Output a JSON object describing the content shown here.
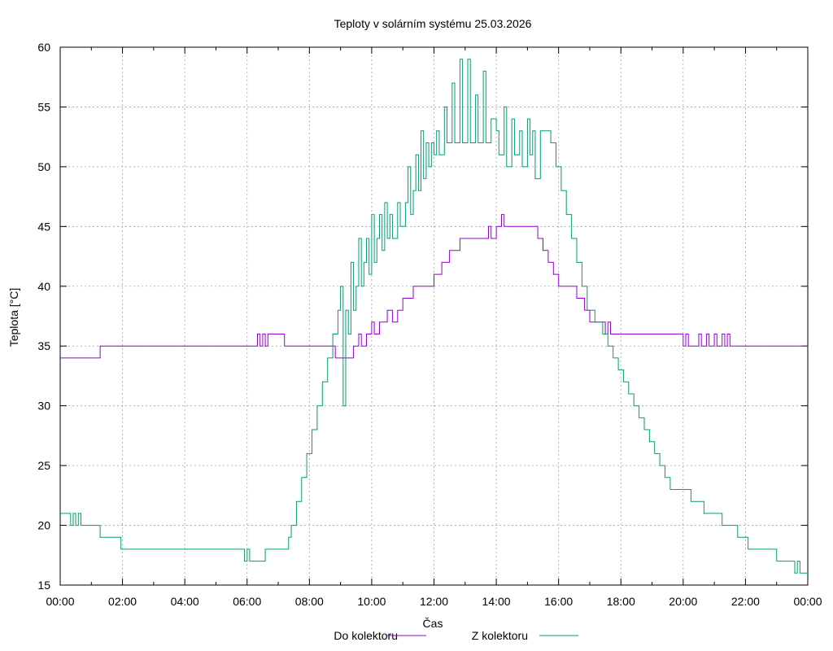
{
  "chart_data": {
    "type": "line",
    "title": "Teploty v solárním systému 25.03.2026",
    "xlabel": "Čas",
    "ylabel": "Teplota [°C]",
    "xlim": [
      "00:00",
      "24:00"
    ],
    "ylim": [
      15,
      60
    ],
    "x_ticks": [
      "00:00",
      "02:00",
      "04:00",
      "06:00",
      "08:00",
      "10:00",
      "12:00",
      "14:00",
      "16:00",
      "18:00",
      "20:00",
      "22:00",
      "00:00"
    ],
    "y_ticks": [
      15,
      20,
      25,
      30,
      35,
      40,
      45,
      50,
      55,
      60
    ],
    "grid": true,
    "legend_position": "bottom",
    "series": [
      {
        "name": "Do kolektoru",
        "color": "#9400d3",
        "points": [
          [
            "00:00",
            34
          ],
          [
            "01:15",
            34
          ],
          [
            "01:17",
            35
          ],
          [
            "06:15",
            35
          ],
          [
            "06:20",
            36
          ],
          [
            "06:25",
            35
          ],
          [
            "06:30",
            36
          ],
          [
            "06:35",
            35
          ],
          [
            "06:40",
            36
          ],
          [
            "07:10",
            36
          ],
          [
            "07:12",
            35
          ],
          [
            "08:45",
            35
          ],
          [
            "08:50",
            34
          ],
          [
            "09:20",
            34
          ],
          [
            "09:25",
            35
          ],
          [
            "09:35",
            36
          ],
          [
            "09:40",
            35
          ],
          [
            "09:50",
            36
          ],
          [
            "10:00",
            37
          ],
          [
            "10:05",
            36
          ],
          [
            "10:15",
            37
          ],
          [
            "10:30",
            38
          ],
          [
            "10:40",
            37
          ],
          [
            "10:50",
            38
          ],
          [
            "11:00",
            39
          ],
          [
            "11:20",
            40
          ],
          [
            "11:40",
            40
          ],
          [
            "12:00",
            41
          ],
          [
            "12:15",
            42
          ],
          [
            "12:30",
            43
          ],
          [
            "12:50",
            44
          ],
          [
            "13:40",
            44
          ],
          [
            "13:45",
            45
          ],
          [
            "13:50",
            44
          ],
          [
            "14:00",
            45
          ],
          [
            "14:10",
            46
          ],
          [
            "14:15",
            45
          ],
          [
            "15:10",
            45
          ],
          [
            "15:20",
            44
          ],
          [
            "15:30",
            43
          ],
          [
            "15:40",
            42
          ],
          [
            "15:50",
            41
          ],
          [
            "16:00",
            40
          ],
          [
            "16:30",
            40
          ],
          [
            "16:35",
            39
          ],
          [
            "16:50",
            38
          ],
          [
            "17:00",
            37
          ],
          [
            "17:25",
            37
          ],
          [
            "17:30",
            36
          ],
          [
            "17:35",
            37
          ],
          [
            "17:40",
            36
          ],
          [
            "19:59",
            36
          ],
          [
            "20:00",
            35
          ],
          [
            "20:05",
            36
          ],
          [
            "20:10",
            35
          ],
          [
            "20:30",
            36
          ],
          [
            "20:35",
            35
          ],
          [
            "20:45",
            36
          ],
          [
            "20:50",
            35
          ],
          [
            "21:00",
            36
          ],
          [
            "21:05",
            35
          ],
          [
            "21:15",
            36
          ],
          [
            "21:20",
            35
          ],
          [
            "21:25",
            36
          ],
          [
            "21:30",
            35
          ],
          [
            "24:00",
            35
          ]
        ]
      },
      {
        "name": "Z kolektoru",
        "color": "#009e73",
        "points": [
          [
            "00:00",
            21
          ],
          [
            "00:15",
            21
          ],
          [
            "00:20",
            20
          ],
          [
            "00:25",
            21
          ],
          [
            "00:30",
            20
          ],
          [
            "00:35",
            21
          ],
          [
            "00:40",
            20
          ],
          [
            "01:15",
            20
          ],
          [
            "01:17",
            19
          ],
          [
            "01:55",
            19
          ],
          [
            "01:57",
            18
          ],
          [
            "05:50",
            18
          ],
          [
            "05:55",
            17
          ],
          [
            "06:00",
            18
          ],
          [
            "06:05",
            17
          ],
          [
            "06:30",
            17
          ],
          [
            "06:35",
            18
          ],
          [
            "07:15",
            18
          ],
          [
            "07:20",
            19
          ],
          [
            "07:25",
            20
          ],
          [
            "07:35",
            22
          ],
          [
            "07:45",
            24
          ],
          [
            "07:55",
            26
          ],
          [
            "08:05",
            28
          ],
          [
            "08:15",
            30
          ],
          [
            "08:25",
            32
          ],
          [
            "08:35",
            34
          ],
          [
            "08:45",
            36
          ],
          [
            "08:55",
            38
          ],
          [
            "09:00",
            40
          ],
          [
            "09:05",
            30
          ],
          [
            "09:10",
            38
          ],
          [
            "09:15",
            36
          ],
          [
            "09:20",
            42
          ],
          [
            "09:25",
            38
          ],
          [
            "09:30",
            40
          ],
          [
            "09:35",
            44
          ],
          [
            "09:40",
            40
          ],
          [
            "09:45",
            42
          ],
          [
            "09:50",
            44
          ],
          [
            "09:55",
            41
          ],
          [
            "10:00",
            46
          ],
          [
            "10:05",
            42
          ],
          [
            "10:10",
            44
          ],
          [
            "10:15",
            46
          ],
          [
            "10:20",
            43
          ],
          [
            "10:25",
            47
          ],
          [
            "10:30",
            44
          ],
          [
            "10:35",
            46
          ],
          [
            "10:40",
            44
          ],
          [
            "10:50",
            47
          ],
          [
            "10:55",
            45
          ],
          [
            "11:05",
            47
          ],
          [
            "11:10",
            50
          ],
          [
            "11:15",
            46
          ],
          [
            "11:20",
            48
          ],
          [
            "11:25",
            51
          ],
          [
            "11:30",
            48
          ],
          [
            "11:35",
            53
          ],
          [
            "11:40",
            49
          ],
          [
            "11:45",
            52
          ],
          [
            "11:50",
            50
          ],
          [
            "11:55",
            52
          ],
          [
            "12:00",
            51
          ],
          [
            "12:05",
            53
          ],
          [
            "12:10",
            51
          ],
          [
            "12:20",
            55
          ],
          [
            "12:25",
            52
          ],
          [
            "12:35",
            57
          ],
          [
            "12:40",
            52
          ],
          [
            "12:50",
            59
          ],
          [
            "12:55",
            52
          ],
          [
            "13:05",
            59
          ],
          [
            "13:10",
            52
          ],
          [
            "13:20",
            56
          ],
          [
            "13:25",
            52
          ],
          [
            "13:35",
            58
          ],
          [
            "13:40",
            52
          ],
          [
            "13:50",
            54
          ],
          [
            "14:00",
            53
          ],
          [
            "14:05",
            51
          ],
          [
            "14:15",
            55
          ],
          [
            "14:20",
            50
          ],
          [
            "14:30",
            54
          ],
          [
            "14:35",
            51
          ],
          [
            "14:45",
            53
          ],
          [
            "14:50",
            50
          ],
          [
            "15:00",
            54
          ],
          [
            "15:05",
            51
          ],
          [
            "15:10",
            53
          ],
          [
            "15:15",
            49
          ],
          [
            "15:25",
            53
          ],
          [
            "15:40",
            53
          ],
          [
            "15:45",
            52
          ],
          [
            "15:55",
            50
          ],
          [
            "16:05",
            48
          ],
          [
            "16:15",
            46
          ],
          [
            "16:25",
            44
          ],
          [
            "16:35",
            42
          ],
          [
            "16:45",
            40
          ],
          [
            "16:55",
            38
          ],
          [
            "17:10",
            37
          ],
          [
            "17:25",
            36
          ],
          [
            "17:35",
            35
          ],
          [
            "17:45",
            34
          ],
          [
            "17:55",
            33
          ],
          [
            "18:05",
            32
          ],
          [
            "18:15",
            31
          ],
          [
            "18:25",
            30
          ],
          [
            "18:35",
            29
          ],
          [
            "18:45",
            28
          ],
          [
            "18:55",
            27
          ],
          [
            "19:05",
            26
          ],
          [
            "19:15",
            25
          ],
          [
            "19:25",
            24
          ],
          [
            "19:35",
            23
          ],
          [
            "19:45",
            23
          ],
          [
            "20:10",
            23
          ],
          [
            "20:15",
            22
          ],
          [
            "20:35",
            22
          ],
          [
            "20:40",
            21
          ],
          [
            "21:10",
            21
          ],
          [
            "21:15",
            20
          ],
          [
            "21:40",
            20
          ],
          [
            "21:45",
            19
          ],
          [
            "22:00",
            19
          ],
          [
            "22:05",
            18
          ],
          [
            "22:55",
            18
          ],
          [
            "23:00",
            17
          ],
          [
            "23:30",
            17
          ],
          [
            "23:35",
            16
          ],
          [
            "23:40",
            17
          ],
          [
            "23:45",
            16
          ],
          [
            "24:00",
            16
          ]
        ]
      }
    ]
  }
}
